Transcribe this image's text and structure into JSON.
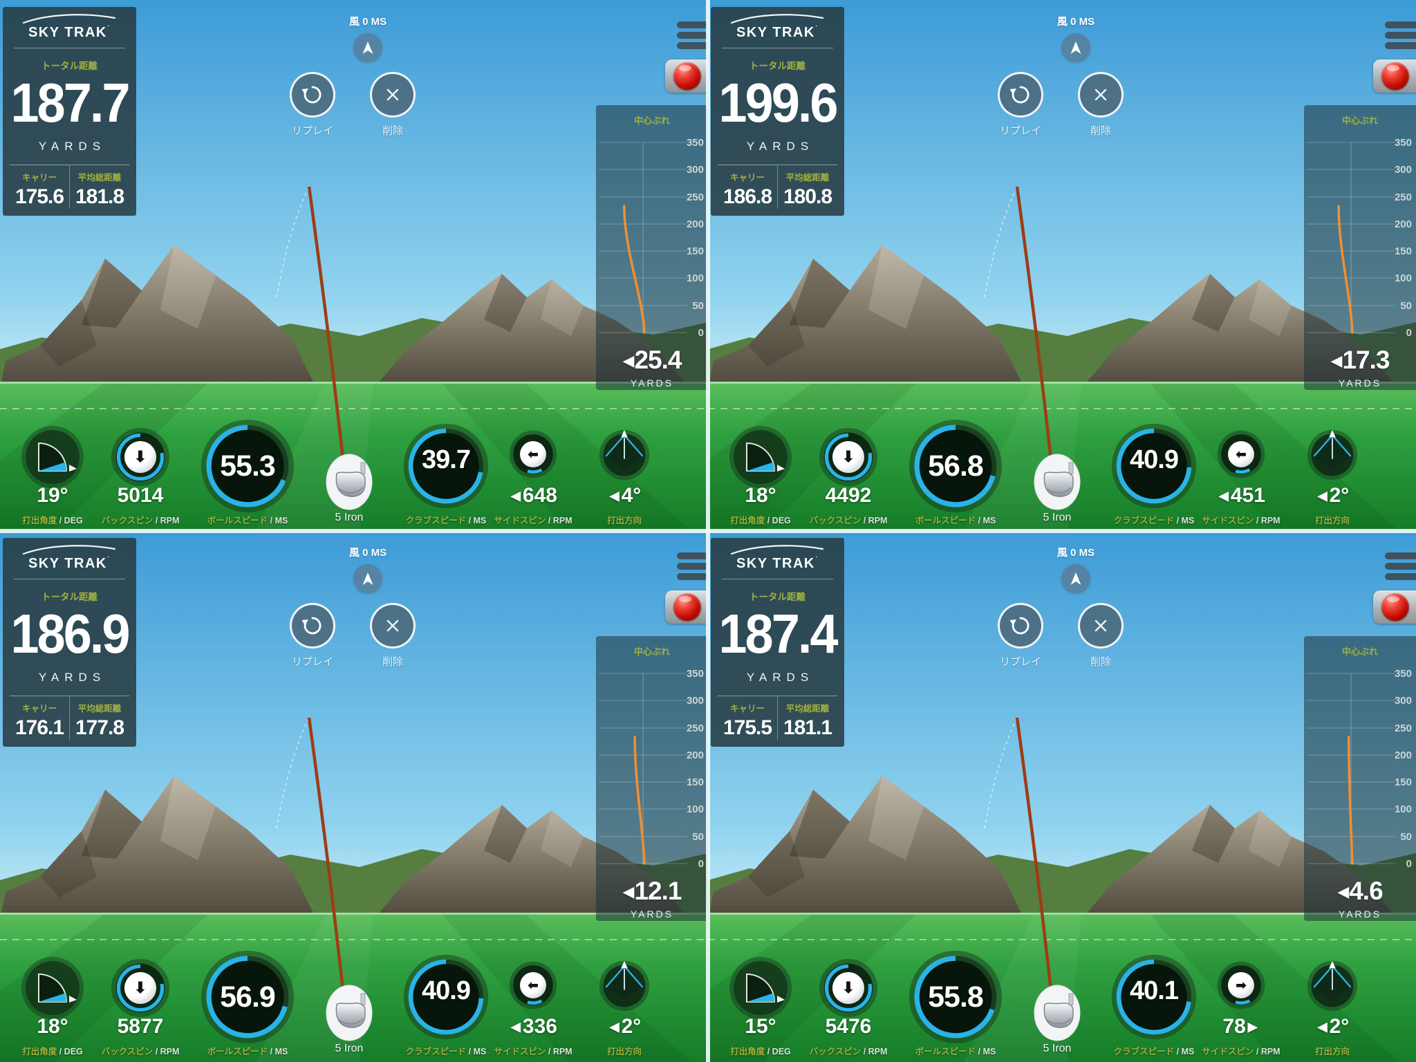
{
  "brand": "SKY TRAK",
  "shared": {
    "wind_label": "風 0 MS",
    "replay_label": "リプレイ",
    "delete_label": "削除",
    "total_label": "トータル距離",
    "yards_label": "YARDS",
    "carry_label": "キャリー",
    "avg_total_label": "平均総距離",
    "deviation_title": "中心ぶれ",
    "deviation_unit": "YARDS",
    "deviation_ticks": [
      "350",
      "300",
      "250",
      "200",
      "150",
      "100",
      "50",
      "0"
    ],
    "labels": {
      "launch_angle_jp": "打出角度",
      "launch_angle_unit": "/ DEG",
      "back_spin_jp": "バックスピン",
      "back_spin_unit": "/ RPM",
      "ball_speed_jp": "ボールスピード",
      "ball_speed_unit": "/ MS",
      "club_speed_jp": "クラブスピード",
      "club_speed_unit": "/ MS",
      "side_spin_jp": "サイドスピン",
      "side_spin_unit": "/ RPM",
      "direction_jp": "打出方向"
    }
  },
  "colors": {
    "accent_blue": "#2AB3E8",
    "label_olive": "#A2B13E",
    "trace_orange": "#F08F33",
    "record_red": "#C30D03"
  },
  "quadrants": [
    {
      "total": "187.7",
      "carry": "175.6",
      "avg_total": "181.8",
      "deviation": "25.4",
      "deviation_dir": "left",
      "launch_angle": "19°",
      "back_spin": "5014",
      "ball_speed": "55.3",
      "club": "5 Iron",
      "club_speed": "39.7",
      "side_spin": "648",
      "side_spin_dir": "left",
      "direction": "4°",
      "direction_dir": "left"
    },
    {
      "total": "199.6",
      "carry": "186.8",
      "avg_total": "180.8",
      "deviation": "17.3",
      "deviation_dir": "left",
      "launch_angle": "18°",
      "back_spin": "4492",
      "ball_speed": "56.8",
      "club": "5 Iron",
      "club_speed": "40.9",
      "side_spin": "451",
      "side_spin_dir": "left",
      "direction": "2°",
      "direction_dir": "left"
    },
    {
      "total": "186.9",
      "carry": "176.1",
      "avg_total": "177.8",
      "deviation": "12.1",
      "deviation_dir": "left",
      "launch_angle": "18°",
      "back_spin": "5877",
      "ball_speed": "56.9",
      "club": "5 Iron",
      "club_speed": "40.9",
      "side_spin": "336",
      "side_spin_dir": "left",
      "direction": "2°",
      "direction_dir": "left"
    },
    {
      "total": "187.4",
      "carry": "175.5",
      "avg_total": "181.1",
      "deviation": "4.6",
      "deviation_dir": "left",
      "launch_angle": "15°",
      "back_spin": "5476",
      "ball_speed": "55.8",
      "club": "5 Iron",
      "club_speed": "40.1",
      "side_spin": "78",
      "side_spin_dir": "right",
      "direction": "2°",
      "direction_dir": "left"
    }
  ]
}
